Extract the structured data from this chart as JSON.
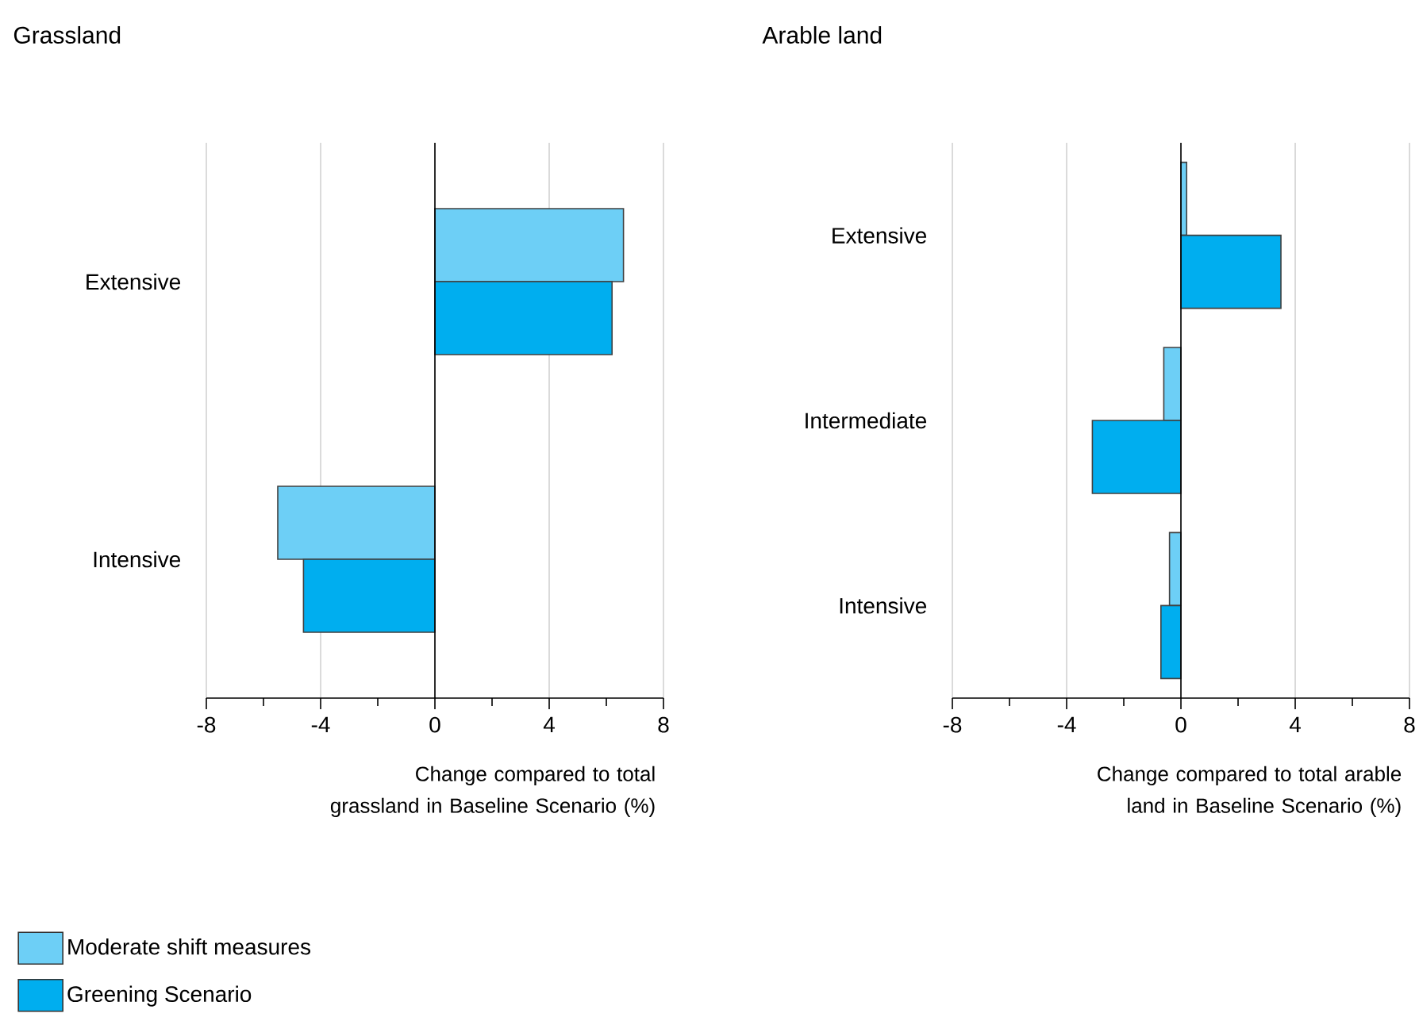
{
  "chart_data": [
    {
      "type": "bar",
      "orientation": "horizontal",
      "title": "Grassland",
      "categories": [
        "Extensive",
        "Intensive"
      ],
      "series": [
        {
          "name": "Moderate shift measures",
          "color": "#6dcff6",
          "values": [
            6.6,
            -5.5
          ]
        },
        {
          "name": "Greening Scenario",
          "color": "#00aeef",
          "values": [
            6.2,
            -4.6
          ]
        }
      ],
      "xlabel": "Change compared to total grassland in Baseline Scenario (%)",
      "xlim": [
        -8,
        8
      ],
      "xticks": [
        -8,
        {
          "value": -6,
          "label": null
        },
        -4,
        {
          "value": -2,
          "label": null
        },
        0,
        {
          "value": 2,
          "label": null
        },
        4,
        {
          "value": 6,
          "label": null
        },
        8
      ],
      "grid": "x",
      "legend": "bottom left"
    },
    {
      "type": "bar",
      "orientation": "horizontal",
      "title": "Arable land",
      "categories": [
        "Extensive",
        "Intermediate",
        "Intensive"
      ],
      "series": [
        {
          "color": "#6dcff6",
          "values": [
            0.2,
            -0.6,
            -0.4
          ]
        },
        {
          "color": "#00aeef",
          "values": [
            3.5,
            -3.1,
            -0.7
          ]
        }
      ],
      "xlabel": "Change compared to total arable land in Baseline Scenario (%)",
      "xlim": [
        -8,
        8
      ],
      "xticks": [
        -8,
        {
          "value": -6,
          "label": null
        },
        -4,
        {
          "value": -2,
          "label": null
        },
        0,
        {
          "value": 2,
          "label": null
        },
        4,
        {
          "value": 6,
          "label": null
        },
        8
      ],
      "grid": "x"
    }
  ]
}
